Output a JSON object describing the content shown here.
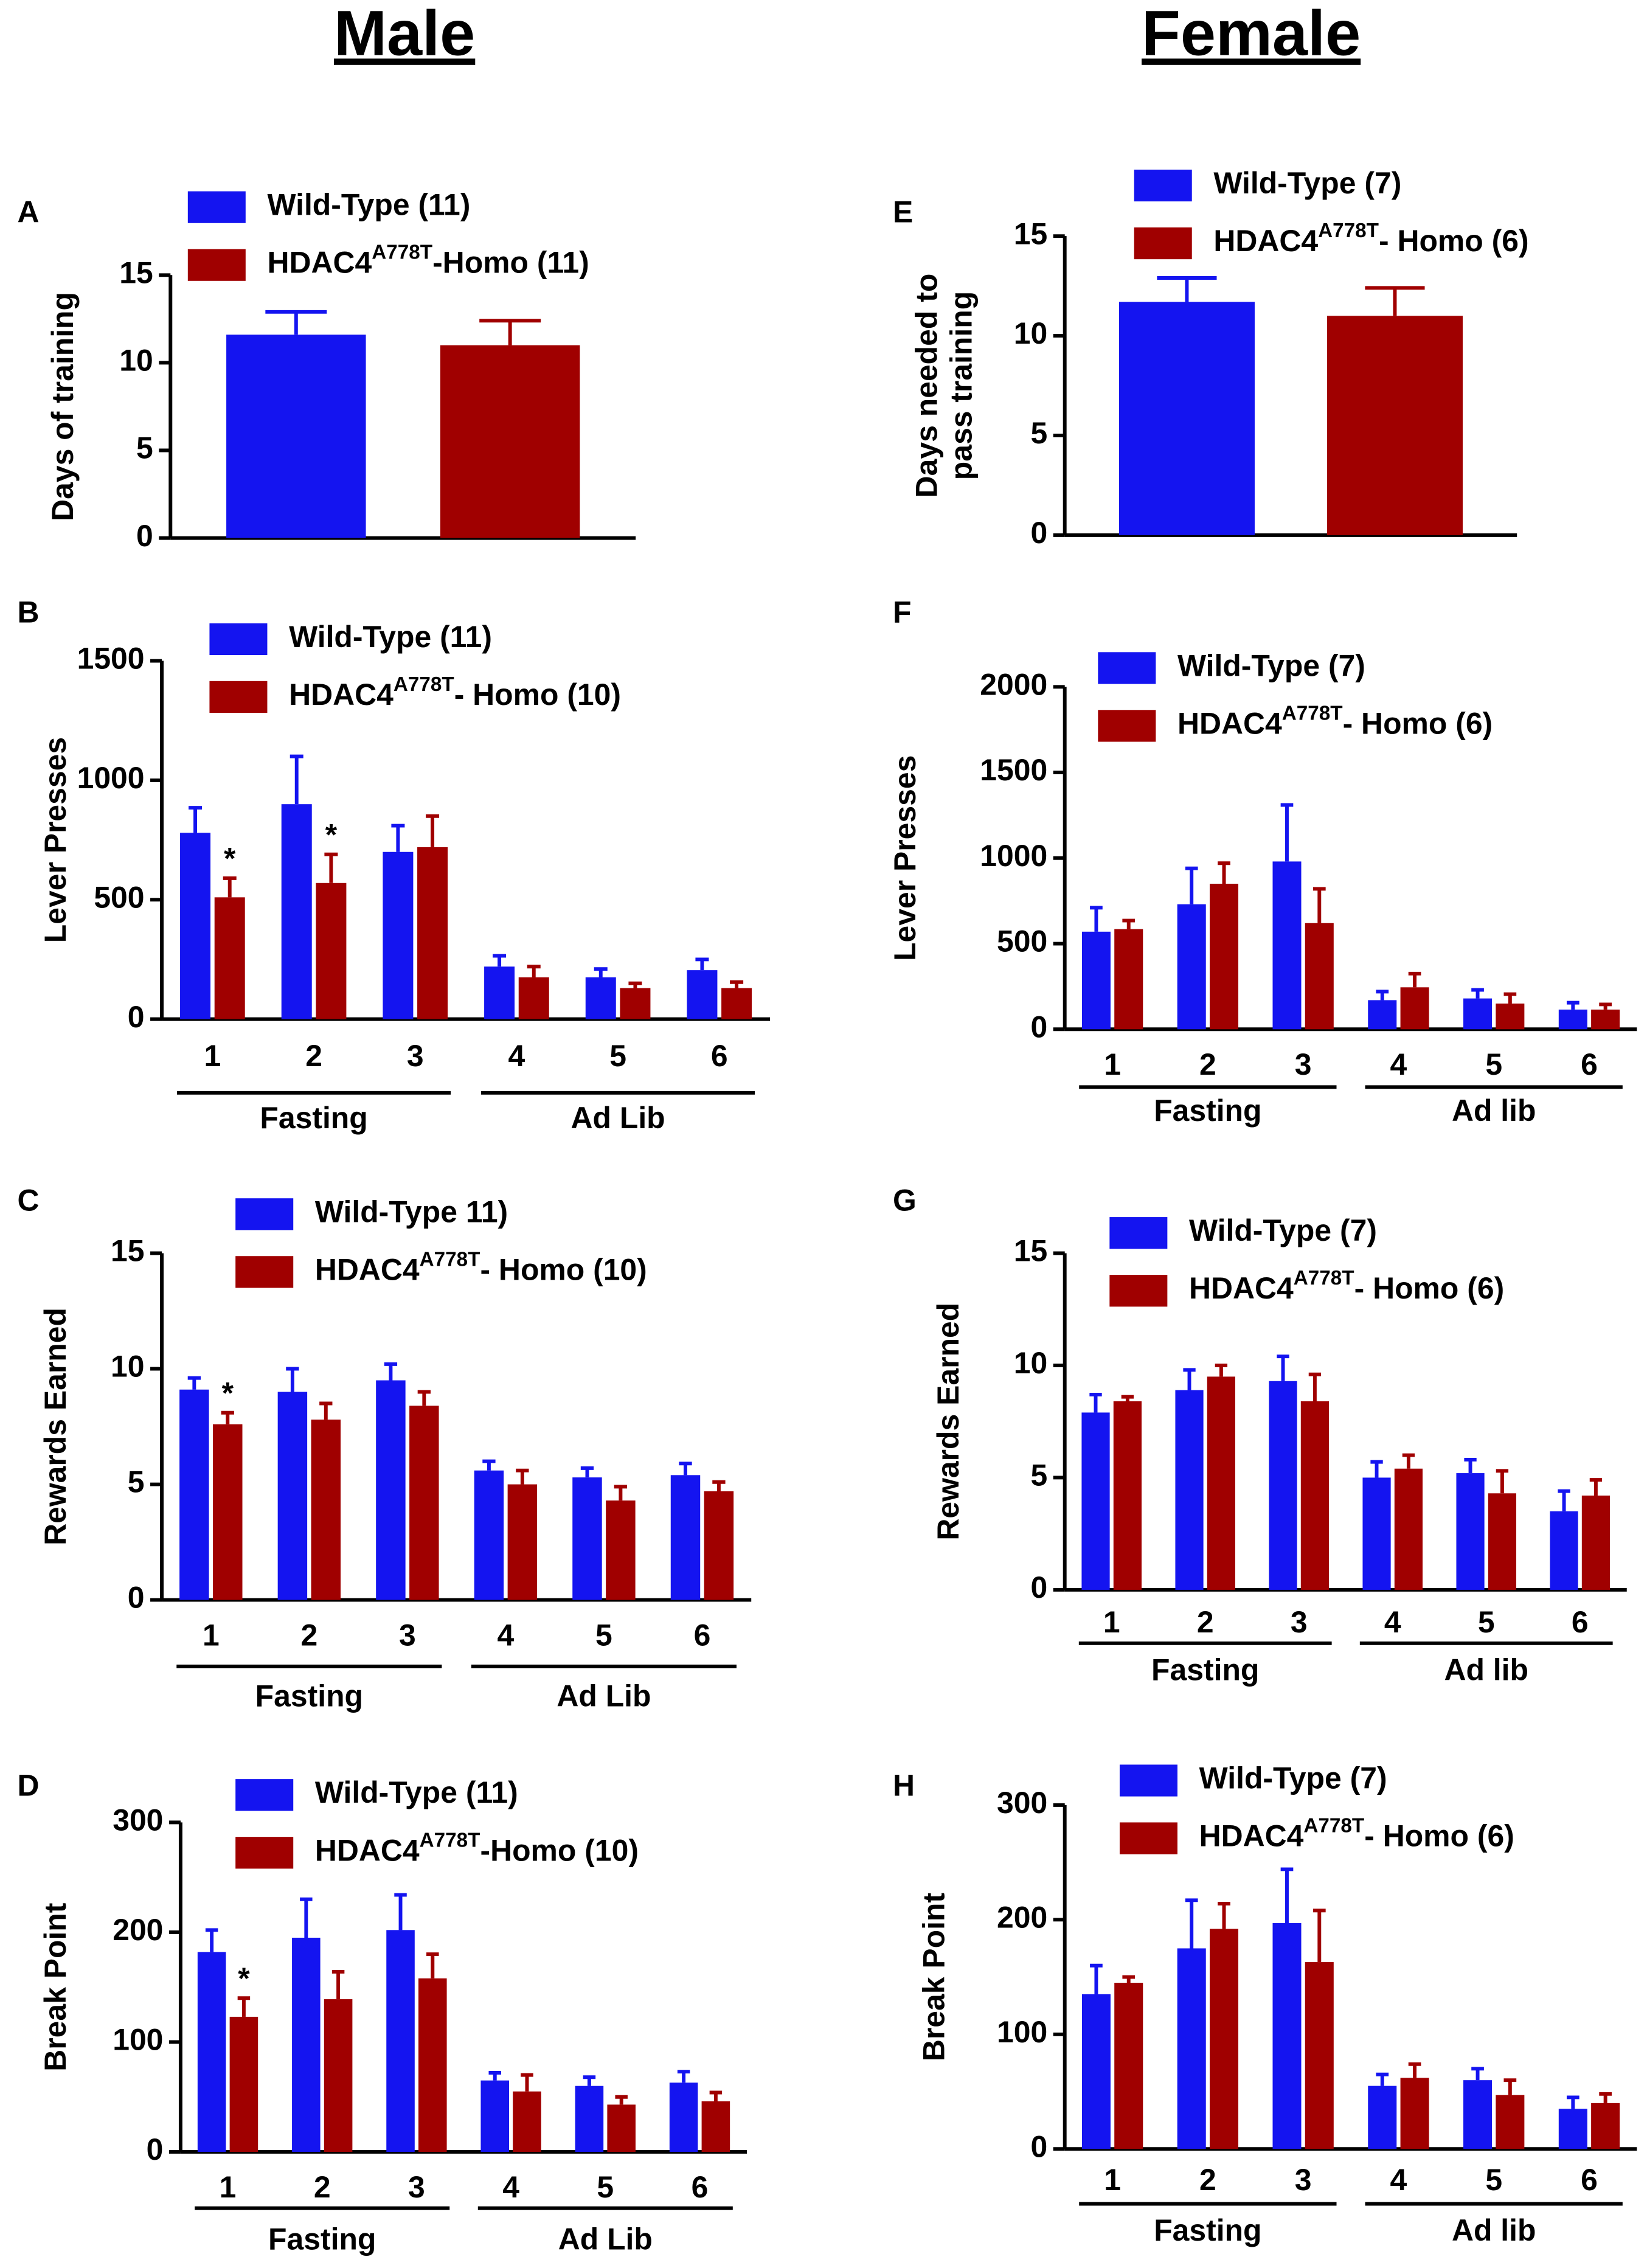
{
  "columns": [
    "Male",
    "Female"
  ],
  "chart_data": [
    {
      "type": "bar",
      "panel": "A",
      "ylabel": [
        "Days of training"
      ],
      "categories": [
        null
      ],
      "groups": [],
      "series": [
        {
          "name": [
            "Wild-Type (11)"
          ],
          "color": "#1414f0",
          "values": [
            11.6
          ],
          "errors": [
            1.3
          ]
        },
        {
          "name": [
            "HDAC4",
            "A778T",
            "-Homo (11)"
          ],
          "color": "#a00000",
          "values": [
            11.0
          ],
          "errors": [
            1.4
          ]
        }
      ],
      "annotations": [],
      "ylim": [
        0,
        15
      ],
      "yticks": [
        0,
        5,
        10,
        15
      ]
    },
    {
      "type": "bar",
      "panel": "E",
      "ylabel": [
        "Days needed to",
        "pass training"
      ],
      "categories": [
        null
      ],
      "groups": [],
      "series": [
        {
          "name": [
            "Wild-Type (7)"
          ],
          "color": "#1414f0",
          "values": [
            11.7
          ],
          "errors": [
            1.2
          ]
        },
        {
          "name": [
            "HDAC4",
            "A778T",
            "- Homo (6)"
          ],
          "color": "#a00000",
          "values": [
            11.0
          ],
          "errors": [
            1.4
          ]
        }
      ],
      "annotations": [],
      "ylim": [
        0,
        15
      ],
      "yticks": [
        0,
        5,
        10,
        15
      ]
    },
    {
      "type": "bar",
      "panel": "B",
      "ylabel": [
        "Lever Presses"
      ],
      "categories": [
        "1",
        "2",
        "3",
        "4",
        "5",
        "6"
      ],
      "groups": [
        {
          "label": "Fasting",
          "count": 3
        },
        {
          "label": "Ad Lib",
          "count": 3
        }
      ],
      "series": [
        {
          "name": [
            "Wild-Type (11)"
          ],
          "color": "#1414f0",
          "values": [
            780,
            900,
            700,
            220,
            175,
            205
          ],
          "errors": [
            105,
            200,
            110,
            45,
            35,
            45
          ]
        },
        {
          "name": [
            "HDAC4",
            "A778T",
            "- Homo (10)"
          ],
          "color": "#a00000",
          "values": [
            510,
            570,
            720,
            175,
            130,
            130
          ],
          "errors": [
            80,
            120,
            130,
            45,
            20,
            25
          ]
        }
      ],
      "annotations": [
        {
          "text": "*",
          "category": 0,
          "series": 1
        },
        {
          "text": "*",
          "category": 1,
          "series": 1
        }
      ],
      "ylim": [
        0,
        1500
      ],
      "yticks": [
        0,
        500,
        1000,
        1500
      ]
    },
    {
      "type": "bar",
      "panel": "F",
      "ylabel": [
        "Lever Presses"
      ],
      "categories": [
        "1",
        "2",
        "3",
        "4",
        "5",
        "6"
      ],
      "groups": [
        {
          "label": "Fasting",
          "count": 3
        },
        {
          "label": "Ad lib",
          "count": 3
        }
      ],
      "series": [
        {
          "name": [
            "Wild-Type (7)"
          ],
          "color": "#1414f0",
          "values": [
            570,
            730,
            980,
            170,
            180,
            115
          ],
          "errors": [
            140,
            210,
            330,
            50,
            50,
            40
          ]
        },
        {
          "name": [
            "HDAC4",
            "A778T",
            "- Homo (6)"
          ],
          "color": "#a00000",
          "values": [
            585,
            850,
            620,
            245,
            150,
            115
          ],
          "errors": [
            50,
            120,
            200,
            80,
            55,
            30
          ]
        }
      ],
      "annotations": [],
      "ylim": [
        0,
        2000
      ],
      "yticks": [
        0,
        500,
        1000,
        1500,
        2000
      ]
    },
    {
      "type": "bar",
      "panel": "C",
      "ylabel": [
        "Rewards Earned"
      ],
      "categories": [
        "1",
        "2",
        "3",
        "4",
        "5",
        "6"
      ],
      "groups": [
        {
          "label": "Fasting",
          "count": 3
        },
        {
          "label": "Ad Lib",
          "count": 3
        }
      ],
      "series": [
        {
          "name": [
            "Wild-Type 11)"
          ],
          "color": "#1414f0",
          "values": [
            9.1,
            9.0,
            9.5,
            5.6,
            5.3,
            5.4
          ],
          "errors": [
            0.5,
            1.0,
            0.7,
            0.4,
            0.4,
            0.5
          ]
        },
        {
          "name": [
            "HDAC4",
            "A778T",
            "- Homo (10)"
          ],
          "color": "#a00000",
          "values": [
            7.6,
            7.8,
            8.4,
            5.0,
            4.3,
            4.7
          ],
          "errors": [
            0.5,
            0.7,
            0.6,
            0.6,
            0.6,
            0.4
          ]
        }
      ],
      "annotations": [
        {
          "text": "*",
          "category": 0,
          "series": 1
        }
      ],
      "ylim": [
        0,
        15
      ],
      "yticks": [
        0,
        5,
        10,
        15
      ]
    },
    {
      "type": "bar",
      "panel": "G",
      "ylabel": [
        "Rewards Earned"
      ],
      "categories": [
        "1",
        "2",
        "3",
        "4",
        "5",
        "6"
      ],
      "groups": [
        {
          "label": "Fasting",
          "count": 3
        },
        {
          "label": "Ad lib",
          "count": 3
        }
      ],
      "series": [
        {
          "name": [
            "Wild-Type (7)"
          ],
          "color": "#1414f0",
          "values": [
            7.9,
            8.9,
            9.3,
            5.0,
            5.2,
            3.5
          ],
          "errors": [
            0.8,
            0.9,
            1.1,
            0.7,
            0.6,
            0.9
          ]
        },
        {
          "name": [
            "HDAC4",
            "A778T",
            "- Homo (6)"
          ],
          "color": "#a00000",
          "values": [
            8.4,
            9.5,
            8.4,
            5.4,
            4.3,
            4.2
          ],
          "errors": [
            0.2,
            0.5,
            1.2,
            0.6,
            1.0,
            0.7
          ]
        }
      ],
      "annotations": [],
      "ylim": [
        0,
        15
      ],
      "yticks": [
        0,
        5,
        10,
        15
      ]
    },
    {
      "type": "bar",
      "panel": "D",
      "ylabel": [
        "Break Point"
      ],
      "categories": [
        "1",
        "2",
        "3",
        "4",
        "5",
        "6"
      ],
      "groups": [
        {
          "label": "Fasting",
          "count": 3
        },
        {
          "label": "Ad Lib",
          "count": 3
        }
      ],
      "series": [
        {
          "name": [
            "Wild-Type (11)"
          ],
          "color": "#1414f0",
          "values": [
            182,
            195,
            202,
            65,
            60,
            63
          ],
          "errors": [
            20,
            35,
            32,
            7,
            8,
            10
          ]
        },
        {
          "name": [
            "HDAC4",
            "A778T",
            "-Homo (10)"
          ],
          "color": "#a00000",
          "values": [
            123,
            139,
            158,
            55,
            43,
            46
          ],
          "errors": [
            17,
            25,
            22,
            15,
            7,
            8
          ]
        }
      ],
      "annotations": [
        {
          "text": "*",
          "category": 0,
          "series": 1
        }
      ],
      "ylim": [
        0,
        300
      ],
      "yticks": [
        0,
        100,
        200,
        300
      ]
    },
    {
      "type": "bar",
      "panel": "H",
      "ylabel": [
        "Break Point"
      ],
      "categories": [
        "1",
        "2",
        "3",
        "4",
        "5",
        "6"
      ],
      "groups": [
        {
          "label": "Fasting",
          "count": 3
        },
        {
          "label": "Ad lib",
          "count": 3
        }
      ],
      "series": [
        {
          "name": [
            "Wild-Type (7)"
          ],
          "color": "#1414f0",
          "values": [
            135,
            175,
            197,
            55,
            60,
            35
          ],
          "errors": [
            25,
            42,
            47,
            10,
            10,
            10
          ]
        },
        {
          "name": [
            "HDAC4",
            "A778T",
            "- Homo (6)"
          ],
          "color": "#a00000",
          "values": [
            145,
            192,
            163,
            62,
            47,
            40
          ],
          "errors": [
            5,
            22,
            45,
            12,
            13,
            8
          ]
        }
      ],
      "annotations": [],
      "ylim": [
        0,
        300
      ],
      "yticks": [
        0,
        100,
        200,
        300
      ]
    }
  ]
}
